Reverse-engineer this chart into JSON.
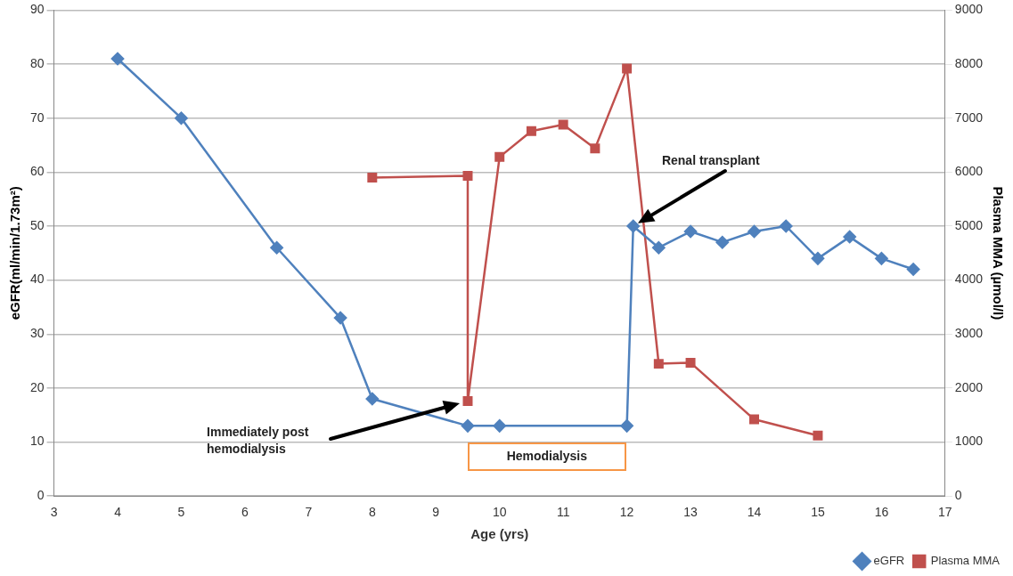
{
  "chart_data": {
    "type": "line",
    "xlabel": "Age (yrs)",
    "ylabel": "eGFR(ml/min/1.73m²)",
    "y2label": "Plasma MMA (µmol/l)",
    "xlim": [
      3,
      17
    ],
    "xticks": [
      3,
      4,
      5,
      6,
      7,
      8,
      9,
      10,
      11,
      12,
      13,
      14,
      15,
      16,
      17
    ],
    "ylim": [
      0,
      90
    ],
    "yticks": [
      0,
      10,
      20,
      30,
      40,
      50,
      60,
      70,
      80,
      90
    ],
    "y2lim": [
      0,
      9000
    ],
    "y2ticks": [
      0,
      1000,
      2000,
      3000,
      4000,
      5000,
      6000,
      7000,
      8000,
      9000
    ],
    "grid": "y",
    "legend": "bottom right",
    "line_style": "solid",
    "series": [
      {
        "name": "eGFR",
        "color": "#4f81bd",
        "marker": "diamond",
        "x": [
          4,
          5,
          6.5,
          7.5,
          8,
          9.5,
          10,
          12,
          12.1,
          12.5,
          13,
          13.5,
          14,
          14.5,
          15,
          15.5,
          16,
          16.5
        ],
        "values": [
          81,
          70,
          46,
          33,
          18,
          13,
          13,
          13,
          50,
          46,
          49,
          47,
          49,
          50,
          44,
          48,
          44,
          42
        ]
      },
      {
        "name": "Plasma MMA",
        "color": "#c0504d",
        "marker": "square",
        "axis": "y2",
        "x": [
          8,
          9.5,
          9.5,
          10,
          10.5,
          11,
          11.5,
          12,
          12.5,
          13,
          14,
          15
        ],
        "values": [
          5900,
          5930,
          1760,
          6280,
          6760,
          6880,
          6440,
          7920,
          2450,
          2470,
          1420,
          1120
        ]
      }
    ],
    "annotations": [
      "Renal transplant",
      "Immediately post hemodialysis",
      "Hemodialysis"
    ]
  }
}
